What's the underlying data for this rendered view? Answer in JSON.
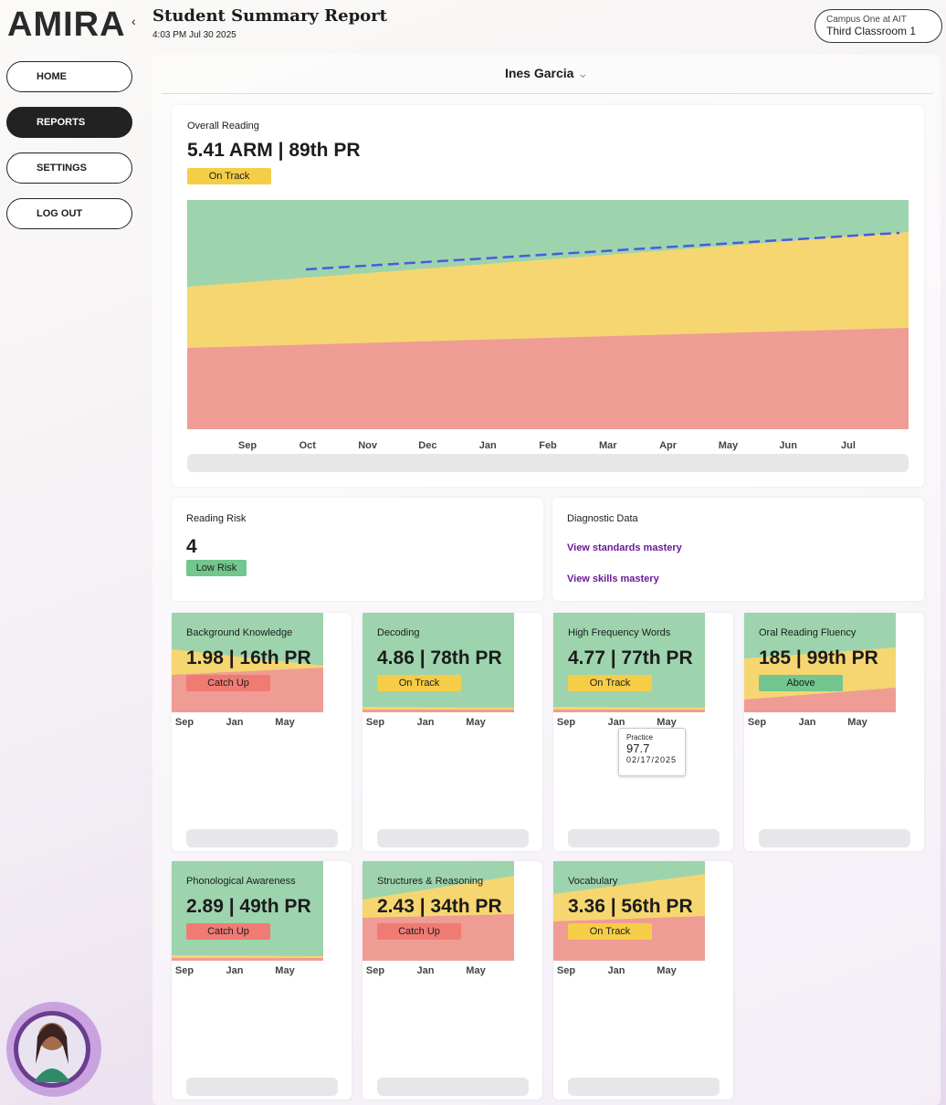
{
  "logo": "AMIRA",
  "header": {
    "title": "Student Summary Report",
    "timestamp": "4:03 PM Jul 30 2025"
  },
  "campus_selector": {
    "campus": "Campus One at AIT",
    "classroom": "Third Classroom 1"
  },
  "nav": [
    "HOME",
    "REPORTS",
    "SETTINGS",
    "LOG OUT"
  ],
  "nav_active": 1,
  "student": "Ines Garcia",
  "overall": {
    "title": "Overall Reading",
    "score": "5.41 ARM",
    "pr": "89th PR",
    "status": "On Track",
    "months": [
      "Sep",
      "Oct",
      "Nov",
      "Dec",
      "Jan",
      "Feb",
      "Mar",
      "Apr",
      "May",
      "Jun",
      "Jul"
    ]
  },
  "risk": {
    "title": "Reading Risk",
    "value": "4",
    "status": "Low Risk"
  },
  "diagnostic": {
    "title": "Diagnostic Data",
    "links": [
      "View standards mastery",
      "View skills mastery"
    ]
  },
  "small_chart_months": [
    "Sep",
    "Jan",
    "May"
  ],
  "cards": [
    {
      "title": "Background Knowledge",
      "score": "1.98",
      "pr": "16th PR",
      "status": "Catch Up"
    },
    {
      "title": "Decoding",
      "score": "4.86",
      "pr": "78th PR",
      "status": "On Track"
    },
    {
      "title": "High Frequency Words",
      "score": "4.77",
      "pr": "77th PR",
      "status": "On Track"
    },
    {
      "title": "Oral Reading Fluency",
      "score": "185",
      "pr": "99th PR",
      "status": "Above"
    },
    {
      "title": "Phonological Awareness",
      "score": "2.89",
      "pr": "49th PR",
      "status": "Catch Up"
    },
    {
      "title": "Structures & Reasoning",
      "score": "2.43",
      "pr": "34th PR",
      "status": "Catch Up"
    },
    {
      "title": "Vocabulary",
      "score": "3.36",
      "pr": "56th PR",
      "status": "On Track"
    }
  ],
  "tooltip": {
    "label": "Practice",
    "value": "97.7",
    "date": "02/17/2025"
  }
}
